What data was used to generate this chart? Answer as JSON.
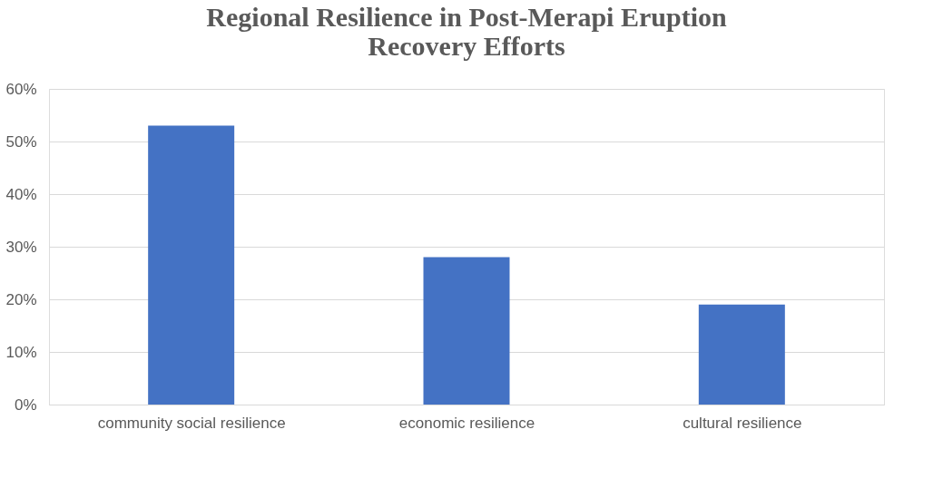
{
  "chart_data": {
    "type": "bar",
    "title": [
      "Regional Resilience in Post-Merapi Eruption",
      "Recovery Efforts"
    ],
    "categories": [
      "community social resilience",
      "economic resilience",
      "cultural resilience"
    ],
    "values": [
      53,
      28,
      19
    ],
    "color": "#4472c4",
    "ylim": [
      0,
      60
    ],
    "yticks": [
      {
        "value": 0,
        "label": "0%"
      },
      {
        "value": 10,
        "label": "10%"
      },
      {
        "value": 20,
        "label": "20%"
      },
      {
        "value": 30,
        "label": "30%"
      },
      {
        "value": 40,
        "label": "40%"
      },
      {
        "value": 50,
        "label": "50%"
      },
      {
        "value": 60,
        "label": "60%"
      }
    ],
    "grid": "y"
  }
}
